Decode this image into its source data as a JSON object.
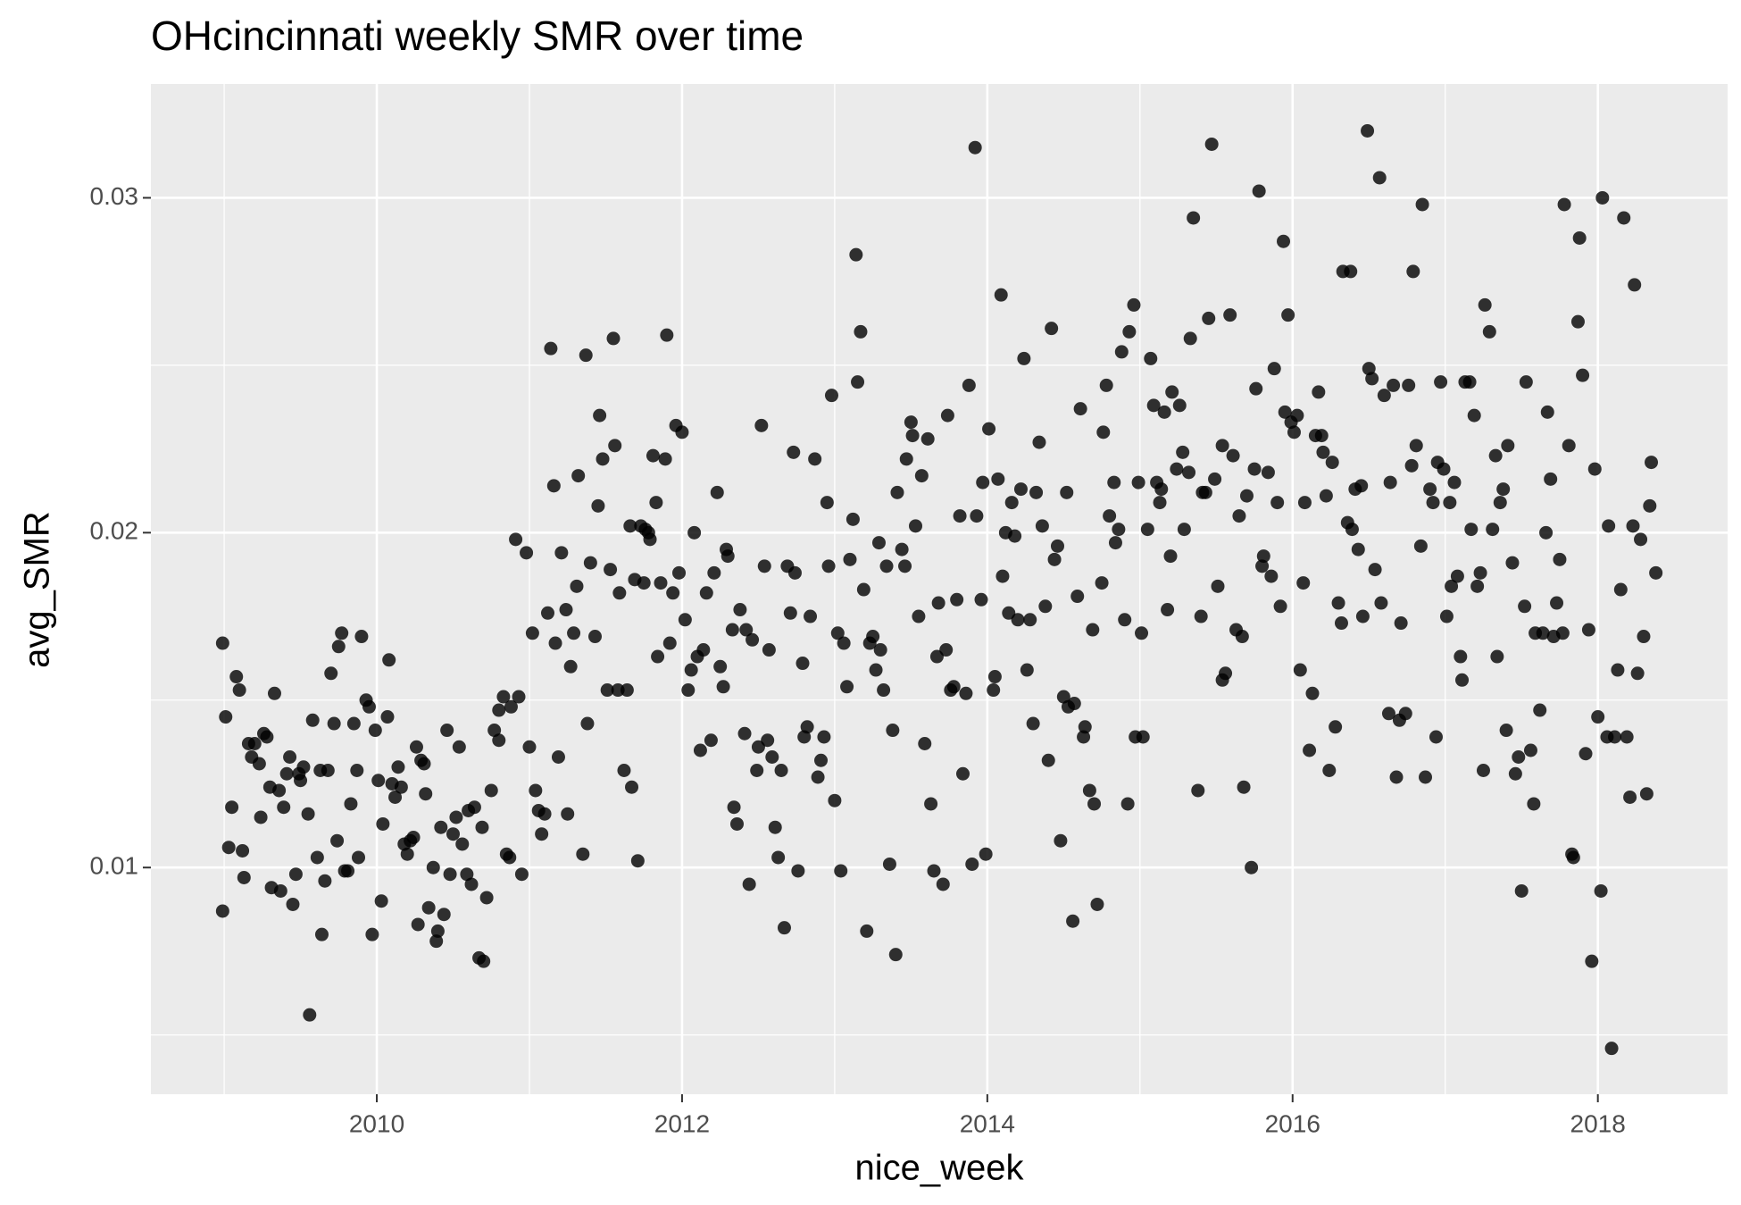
{
  "chart_data": {
    "type": "scatter",
    "title": "OHcincinnati weekly SMR over time",
    "x_label": "nice_week",
    "y_label": "avg_SMR",
    "color": "#000000",
    "grid": true,
    "xlim": [
      2008.52,
      2018.85
    ],
    "ylim": [
      0.00323,
      0.0334
    ],
    "xticks": [
      2010,
      2012,
      2014,
      2016,
      2018
    ],
    "yticks": [
      0.01,
      0.02,
      0.03
    ],
    "x": [
      2008.99,
      2008.99,
      2009.01,
      2009.03,
      2009.05,
      2009.08,
      2009.1,
      2009.12,
      2009.13,
      2009.16,
      2009.18,
      2009.2,
      2009.23,
      2009.24,
      2009.26,
      2009.28,
      2009.3,
      2009.31,
      2009.33,
      2009.36,
      2009.37,
      2009.39,
      2009.41,
      2009.43,
      2009.45,
      2009.47,
      2009.49,
      2009.5,
      2009.52,
      2009.55,
      2009.56,
      2009.58,
      2009.61,
      2009.63,
      2009.64,
      2009.66,
      2009.68,
      2009.7,
      2009.72,
      2009.74,
      2009.75,
      2009.77,
      2009.79,
      2009.81,
      2009.83,
      2009.85,
      2009.87,
      2009.88,
      2009.9,
      2009.93,
      2009.95,
      2009.97,
      2009.99,
      2010.01,
      2010.03,
      2010.04,
      2010.07,
      2010.08,
      2010.1,
      2010.12,
      2010.14,
      2010.16,
      2010.18,
      2010.2,
      2010.22,
      2010.24,
      2010.26,
      2010.27,
      2010.29,
      2010.31,
      2010.32,
      2010.34,
      2010.37,
      2010.39,
      2010.4,
      2010.42,
      2010.44,
      2010.46,
      2010.48,
      2010.5,
      2010.52,
      2010.54,
      2010.56,
      2010.59,
      2010.6,
      2010.62,
      2010.64,
      2010.67,
      2010.69,
      2010.7,
      2010.72,
      2010.75,
      2010.77,
      2010.8,
      2010.8,
      2010.83,
      2010.85,
      2010.87,
      2010.88,
      2010.91,
      2010.93,
      2010.95,
      2010.98,
      2011.0,
      2011.02,
      2011.04,
      2011.06,
      2011.08,
      2011.1,
      2011.12,
      2011.14,
      2011.16,
      2011.17,
      2011.19,
      2011.21,
      2011.24,
      2011.25,
      2011.27,
      2011.29,
      2011.31,
      2011.32,
      2011.35,
      2011.37,
      2011.38,
      2011.4,
      2011.43,
      2011.45,
      2011.46,
      2011.48,
      2011.51,
      2011.53,
      2011.55,
      2011.56,
      2011.58,
      2011.59,
      2011.62,
      2011.64,
      2011.66,
      2011.67,
      2011.69,
      2011.71,
      2011.73,
      2011.75,
      2011.76,
      2011.78,
      2011.79,
      2011.81,
      2011.83,
      2011.84,
      2011.86,
      2011.89,
      2011.9,
      2011.92,
      2011.94,
      2011.96,
      2011.98,
      2012.0,
      2012.02,
      2012.04,
      2012.06,
      2012.08,
      2012.1,
      2012.12,
      2012.14,
      2012.16,
      2012.19,
      2012.21,
      2012.23,
      2012.25,
      2012.27,
      2012.29,
      2012.3,
      2012.33,
      2012.34,
      2012.36,
      2012.38,
      2012.41,
      2012.42,
      2012.44,
      2012.46,
      2012.49,
      2012.5,
      2012.52,
      2012.54,
      2012.56,
      2012.57,
      2012.59,
      2012.61,
      2012.63,
      2012.65,
      2012.67,
      2012.69,
      2012.71,
      2012.73,
      2012.74,
      2012.76,
      2012.79,
      2012.8,
      2012.82,
      2012.84,
      2012.87,
      2012.89,
      2012.91,
      2012.93,
      2012.95,
      2012.96,
      2012.98,
      2013.0,
      2013.02,
      2013.04,
      2013.06,
      2013.08,
      2013.1,
      2013.12,
      2013.14,
      2013.15,
      2013.17,
      2013.19,
      2013.21,
      2013.23,
      2013.25,
      2013.27,
      2013.29,
      2013.3,
      2013.32,
      2013.34,
      2013.36,
      2013.38,
      2013.4,
      2013.41,
      2013.44,
      2013.46,
      2013.47,
      2013.5,
      2013.51,
      2013.53,
      2013.55,
      2013.57,
      2013.59,
      2013.61,
      2013.63,
      2013.65,
      2013.67,
      2013.68,
      2013.71,
      2013.73,
      2013.74,
      2013.76,
      2013.78,
      2013.8,
      2013.82,
      2013.84,
      2013.86,
      2013.88,
      2013.9,
      2013.92,
      2013.93,
      2013.96,
      2013.97,
      2013.99,
      2014.01,
      2014.04,
      2014.05,
      2014.07,
      2014.09,
      2014.1,
      2014.12,
      2014.14,
      2014.16,
      2014.18,
      2014.2,
      2014.22,
      2014.24,
      2014.26,
      2014.28,
      2014.3,
      2014.32,
      2014.34,
      2014.36,
      2014.38,
      2014.4,
      2014.42,
      2014.44,
      2014.46,
      2014.48,
      2014.5,
      2014.52,
      2014.53,
      2014.56,
      2014.57,
      2014.59,
      2014.61,
      2014.63,
      2014.64,
      2014.67,
      2014.69,
      2014.7,
      2014.72,
      2014.75,
      2014.76,
      2014.78,
      2014.8,
      2014.83,
      2014.84,
      2014.86,
      2014.88,
      2014.9,
      2014.92,
      2014.93,
      2014.96,
      2014.97,
      2014.99,
      2015.01,
      2015.02,
      2015.05,
      2015.07,
      2015.09,
      2015.11,
      2015.13,
      2015.14,
      2015.16,
      2015.18,
      2015.2,
      2015.21,
      2015.24,
      2015.26,
      2015.28,
      2015.29,
      2015.32,
      2015.33,
      2015.35,
      2015.38,
      2015.4,
      2015.41,
      2015.43,
      2015.45,
      2015.47,
      2015.49,
      2015.51,
      2015.54,
      2015.54,
      2015.56,
      2015.59,
      2015.61,
      2015.63,
      2015.65,
      2015.67,
      2015.68,
      2015.7,
      2015.73,
      2015.75,
      2015.76,
      2015.78,
      2015.8,
      2015.81,
      2015.84,
      2015.86,
      2015.88,
      2015.9,
      2015.92,
      2015.94,
      2015.95,
      2015.97,
      2015.99,
      2016.01,
      2016.03,
      2016.05,
      2016.07,
      2016.08,
      2016.11,
      2016.13,
      2016.15,
      2016.17,
      2016.19,
      2016.2,
      2016.22,
      2016.24,
      2016.26,
      2016.28,
      2016.3,
      2016.32,
      2016.33,
      2016.36,
      2016.38,
      2016.39,
      2016.41,
      2016.43,
      2016.45,
      2016.46,
      2016.49,
      2016.5,
      2016.52,
      2016.54,
      2016.57,
      2016.58,
      2016.6,
      2016.63,
      2016.64,
      2016.66,
      2016.68,
      2016.7,
      2016.71,
      2016.74,
      2016.76,
      2016.78,
      2016.79,
      2016.81,
      2016.84,
      2016.85,
      2016.87,
      2016.9,
      2016.92,
      2016.94,
      2016.95,
      2016.97,
      2016.99,
      2017.01,
      2017.03,
      2017.04,
      2017.06,
      2017.08,
      2017.1,
      2017.11,
      2017.13,
      2017.16,
      2017.17,
      2017.19,
      2017.21,
      2017.23,
      2017.25,
      2017.26,
      2017.29,
      2017.31,
      2017.33,
      2017.34,
      2017.36,
      2017.38,
      2017.4,
      2017.41,
      2017.44,
      2017.46,
      2017.48,
      2017.5,
      2017.52,
      2017.53,
      2017.56,
      2017.58,
      2017.59,
      2017.62,
      2017.64,
      2017.66,
      2017.67,
      2017.69,
      2017.71,
      2017.73,
      2017.75,
      2017.77,
      2017.78,
      2017.81,
      2017.83,
      2017.84,
      2017.87,
      2017.88,
      2017.9,
      2017.92,
      2017.94,
      2017.96,
      2017.98,
      2018.0,
      2018.02,
      2018.03,
      2018.06,
      2018.07,
      2018.09,
      2018.11,
      2018.13,
      2018.15,
      2018.17,
      2018.19,
      2018.21,
      2018.23,
      2018.24,
      2018.26,
      2018.28,
      2018.3,
      2018.32,
      2018.34,
      2018.35,
      2018.38
    ],
    "values": [
      0.0167,
      0.0087,
      0.0145,
      0.0106,
      0.0118,
      0.0157,
      0.0153,
      0.0105,
      0.0097,
      0.0137,
      0.0133,
      0.0137,
      0.0131,
      0.0115,
      0.014,
      0.0139,
      0.0124,
      0.0094,
      0.0152,
      0.0123,
      0.0093,
      0.0118,
      0.0128,
      0.0133,
      0.0089,
      0.0098,
      0.0128,
      0.0126,
      0.013,
      0.0116,
      0.0056,
      0.0144,
      0.0103,
      0.0129,
      0.008,
      0.0096,
      0.0129,
      0.0158,
      0.0143,
      0.0108,
      0.0166,
      0.017,
      0.0099,
      0.0099,
      0.0119,
      0.0143,
      0.0129,
      0.0103,
      0.0169,
      0.015,
      0.0148,
      0.008,
      0.0141,
      0.0126,
      0.009,
      0.0113,
      0.0145,
      0.0162,
      0.0125,
      0.0121,
      0.013,
      0.0124,
      0.0107,
      0.0104,
      0.0108,
      0.0109,
      0.0136,
      0.0083,
      0.0132,
      0.0131,
      0.0122,
      0.0088,
      0.01,
      0.0078,
      0.0081,
      0.0112,
      0.0086,
      0.0141,
      0.0098,
      0.011,
      0.0115,
      0.0136,
      0.0107,
      0.0098,
      0.0117,
      0.0095,
      0.0118,
      0.0073,
      0.0112,
      0.0072,
      0.0091,
      0.0123,
      0.0141,
      0.0138,
      0.0147,
      0.0151,
      0.0104,
      0.0103,
      0.0148,
      0.0198,
      0.0151,
      0.0098,
      0.0194,
      0.0136,
      0.017,
      0.0123,
      0.0117,
      0.011,
      0.0116,
      0.0176,
      0.0255,
      0.0214,
      0.0167,
      0.0133,
      0.0194,
      0.0177,
      0.0116,
      0.016,
      0.017,
      0.0184,
      0.0217,
      0.0104,
      0.0253,
      0.0143,
      0.0191,
      0.0169,
      0.0208,
      0.0235,
      0.0222,
      0.0153,
      0.0189,
      0.0258,
      0.0226,
      0.0153,
      0.0182,
      0.0129,
      0.0153,
      0.0202,
      0.0124,
      0.0186,
      0.0102,
      0.0202,
      0.0185,
      0.0201,
      0.02,
      0.0198,
      0.0223,
      0.0209,
      0.0163,
      0.0185,
      0.0222,
      0.0259,
      0.0167,
      0.0182,
      0.0232,
      0.0188,
      0.023,
      0.0174,
      0.0153,
      0.0159,
      0.02,
      0.0163,
      0.0135,
      0.0165,
      0.0182,
      0.0138,
      0.0188,
      0.0212,
      0.016,
      0.0154,
      0.0195,
      0.0193,
      0.0171,
      0.0118,
      0.0113,
      0.0177,
      0.014,
      0.0171,
      0.0095,
      0.0168,
      0.0129,
      0.0136,
      0.0232,
      0.019,
      0.0138,
      0.0165,
      0.0133,
      0.0112,
      0.0103,
      0.0129,
      0.0082,
      0.019,
      0.0176,
      0.0224,
      0.0188,
      0.0099,
      0.0161,
      0.0139,
      0.0142,
      0.0175,
      0.0222,
      0.0127,
      0.0132,
      0.0139,
      0.0209,
      0.019,
      0.0241,
      0.012,
      0.017,
      0.0099,
      0.0167,
      0.0154,
      0.0192,
      0.0204,
      0.0283,
      0.0245,
      0.026,
      0.0183,
      0.0081,
      0.0167,
      0.0169,
      0.0159,
      0.0197,
      0.0165,
      0.0153,
      0.019,
      0.0101,
      0.0141,
      0.0074,
      0.0212,
      0.0195,
      0.019,
      0.0222,
      0.0233,
      0.0229,
      0.0202,
      0.0175,
      0.0217,
      0.0137,
      0.0228,
      0.0119,
      0.0099,
      0.0163,
      0.0179,
      0.0095,
      0.0165,
      0.0235,
      0.0153,
      0.0154,
      0.018,
      0.0205,
      0.0128,
      0.0152,
      0.0244,
      0.0101,
      0.0315,
      0.0205,
      0.018,
      0.0215,
      0.0104,
      0.0231,
      0.0153,
      0.0157,
      0.0216,
      0.0271,
      0.0187,
      0.02,
      0.0176,
      0.0209,
      0.0199,
      0.0174,
      0.0213,
      0.0252,
      0.0159,
      0.0174,
      0.0143,
      0.0212,
      0.0227,
      0.0202,
      0.0178,
      0.0132,
      0.0261,
      0.0192,
      0.0196,
      0.0108,
      0.0151,
      0.0212,
      0.0148,
      0.0084,
      0.0149,
      0.0181,
      0.0237,
      0.0139,
      0.0142,
      0.0123,
      0.0171,
      0.0119,
      0.0089,
      0.0185,
      0.023,
      0.0244,
      0.0205,
      0.0215,
      0.0197,
      0.0201,
      0.0254,
      0.0174,
      0.0119,
      0.026,
      0.0268,
      0.0139,
      0.0215,
      0.017,
      0.0139,
      0.0201,
      0.0252,
      0.0238,
      0.0215,
      0.0209,
      0.0213,
      0.0236,
      0.0177,
      0.0193,
      0.0242,
      0.0219,
      0.0238,
      0.0224,
      0.0201,
      0.0218,
      0.0258,
      0.0294,
      0.0123,
      0.0175,
      0.0212,
      0.0212,
      0.0264,
      0.0316,
      0.0216,
      0.0184,
      0.0226,
      0.0156,
      0.0158,
      0.0265,
      0.0223,
      0.0171,
      0.0205,
      0.0169,
      0.0124,
      0.0211,
      0.01,
      0.0219,
      0.0243,
      0.0302,
      0.019,
      0.0193,
      0.0218,
      0.0187,
      0.0249,
      0.0209,
      0.0178,
      0.0287,
      0.0236,
      0.0265,
      0.0233,
      0.023,
      0.0235,
      0.0159,
      0.0185,
      0.0209,
      0.0135,
      0.0152,
      0.0229,
      0.0242,
      0.0229,
      0.0224,
      0.0211,
      0.0129,
      0.0221,
      0.0142,
      0.0179,
      0.0173,
      0.0278,
      0.0203,
      0.0278,
      0.0201,
      0.0213,
      0.0195,
      0.0214,
      0.0175,
      0.032,
      0.0249,
      0.0246,
      0.0189,
      0.0306,
      0.0179,
      0.0241,
      0.0146,
      0.0215,
      0.0244,
      0.0127,
      0.0144,
      0.0173,
      0.0146,
      0.0244,
      0.022,
      0.0278,
      0.0226,
      0.0196,
      0.0298,
      0.0127,
      0.0213,
      0.0209,
      0.0139,
      0.0221,
      0.0245,
      0.0219,
      0.0175,
      0.0209,
      0.0184,
      0.0215,
      0.0187,
      0.0163,
      0.0156,
      0.0245,
      0.0245,
      0.0201,
      0.0235,
      0.0184,
      0.0188,
      0.0129,
      0.0268,
      0.026,
      0.0201,
      0.0223,
      0.0163,
      0.0209,
      0.0213,
      0.0141,
      0.0226,
      0.0191,
      0.0128,
      0.0133,
      0.0093,
      0.0178,
      0.0245,
      0.0135,
      0.0119,
      0.017,
      0.0147,
      0.017,
      0.02,
      0.0236,
      0.0216,
      0.0169,
      0.0179,
      0.0192,
      0.017,
      0.0298,
      0.0226,
      0.0104,
      0.0103,
      0.0263,
      0.0288,
      0.0247,
      0.0134,
      0.0171,
      0.0072,
      0.0219,
      0.0145,
      0.0093,
      0.03,
      0.0139,
      0.0202,
      0.0046,
      0.0139,
      0.0159,
      0.0183,
      0.0294,
      0.0139,
      0.0121,
      0.0202,
      0.0274,
      0.0158,
      0.0198,
      0.0169,
      0.0122,
      0.0208,
      0.0221,
      0.0188
    ]
  }
}
